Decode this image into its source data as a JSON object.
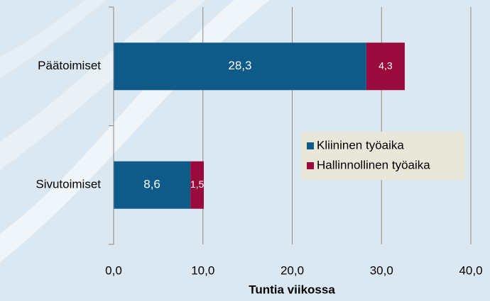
{
  "chart_data": {
    "type": "bar",
    "orientation": "horizontal",
    "stacked": true,
    "categories": [
      "Päätoimiset",
      "Sivutoimiset"
    ],
    "series": [
      {
        "name": "Kliininen työaika",
        "color": "#0e5a88",
        "values": [
          28.3,
          8.6
        ],
        "value_labels": [
          "28,3",
          "8,6"
        ]
      },
      {
        "name": "Hallinnollinen työaika",
        "color": "#9a0b3d",
        "values": [
          4.3,
          1.5
        ],
        "value_labels": [
          "4,3",
          "1,5"
        ]
      }
    ],
    "xlabel": "Tuntia viikossa",
    "xlim": [
      0,
      40
    ],
    "xticks": [
      {
        "value": 0,
        "label": "0,0"
      },
      {
        "value": 10,
        "label": "10,0"
      },
      {
        "value": 20,
        "label": "20,0"
      },
      {
        "value": 30,
        "label": "30,0"
      },
      {
        "value": 40,
        "label": "40,0"
      }
    ],
    "grid": true,
    "legend": "right"
  }
}
